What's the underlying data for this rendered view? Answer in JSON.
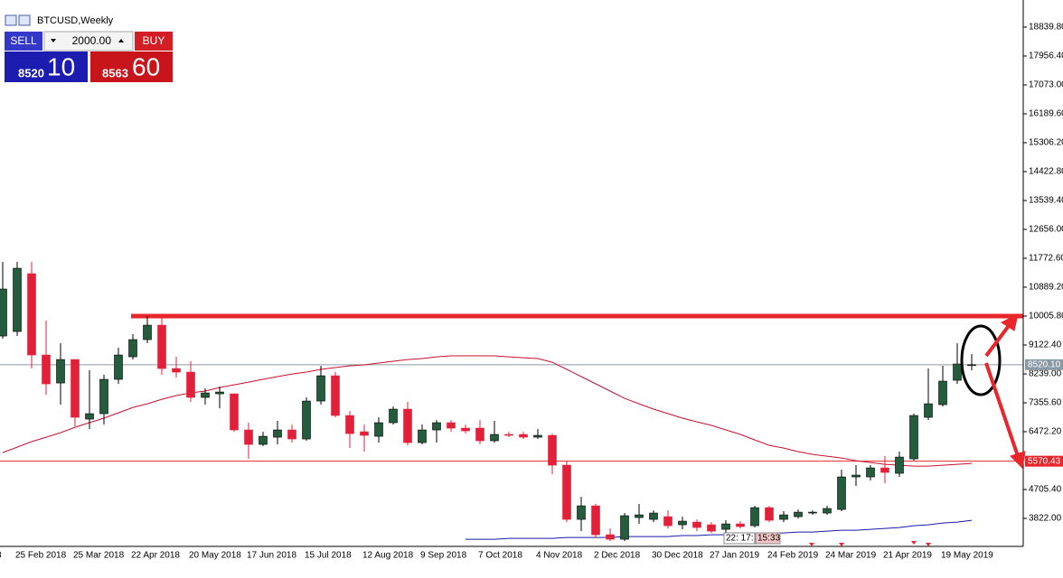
{
  "chart_data": {
    "type": "candlestick",
    "symbol": "BTCUSD,Weekly",
    "up_color": "#245c3e",
    "down_color": "#e3203a",
    "ylim": [
      2966,
      19668
    ],
    "yticks": [
      {
        "value": 3822.0,
        "label": "3822.00"
      },
      {
        "value": 4705.4,
        "label": "4705.40"
      },
      {
        "value": 6472.2,
        "label": "6472.20"
      },
      {
        "value": 7355.6,
        "label": "7355.60"
      },
      {
        "value": 8239.0,
        "label": "8239.00"
      },
      {
        "value": 9122.4,
        "label": "9122.40"
      },
      {
        "value": 10005.8,
        "label": "10005.80"
      },
      {
        "value": 10889.2,
        "label": "10889.20"
      },
      {
        "value": 11772.6,
        "label": "11772.60"
      },
      {
        "value": 12656.0,
        "label": "12656.00"
      },
      {
        "value": 13539.4,
        "label": "13539.40"
      },
      {
        "value": 14422.8,
        "label": "14422.80"
      },
      {
        "value": 15306.2,
        "label": "15306.20"
      },
      {
        "value": 16189.6,
        "label": "16189.60"
      },
      {
        "value": 17073.0,
        "label": "17073.00"
      },
      {
        "value": 17956.4,
        "label": "17956.40"
      },
      {
        "value": 18839.8,
        "label": "18839.80"
      }
    ],
    "cut_label": "8",
    "categories": [
      null,
      "25 Feb 2018",
      null,
      null,
      null,
      "25 Mar 2018",
      null,
      null,
      null,
      "22 Apr 2018",
      null,
      null,
      null,
      "20 May 2018",
      null,
      null,
      null,
      "17 Jun 2018",
      null,
      null,
      null,
      "15 Jul 2018",
      null,
      null,
      null,
      "12 Aug 2018",
      null,
      null,
      null,
      "9 Sep 2018",
      null,
      null,
      null,
      "7 Oct 2018",
      null,
      null,
      null,
      "4 Nov 2018",
      null,
      null,
      null,
      "2 Dec 2018",
      null,
      null,
      null,
      "30 Dec 2018",
      null,
      null,
      null,
      "27 Jan 2019",
      null,
      null,
      null,
      "24 Feb 2019",
      null,
      null,
      null,
      "24 Mar 2019",
      null,
      null,
      null,
      "21 Apr 2019",
      null,
      null,
      null,
      "19 May 2019",
      null,
      null
    ],
    "open": [
      9397,
      9535,
      11302,
      8817,
      7961,
      8679,
      6857,
      7023,
      8072,
      8762,
      9287,
      9728,
      8403,
      8293,
      7520,
      7630,
      7630,
      6526,
      6084,
      6305,
      6526,
      6250,
      7409,
      8182,
      6967,
      6470,
      6332,
      6747,
      7161,
      6139,
      6526,
      6747,
      6581,
      6581,
      6195,
      6388,
      6388,
      6305,
      6360,
      5449,
      3792,
      4206,
      3323,
      3185,
      3847,
      3792,
      3875,
      3627,
      3709,
      3627,
      3488,
      3654,
      3599,
      4151,
      3792,
      3875,
      3986,
      3986,
      4096,
      5090,
      5090,
      5366,
      5200,
      5642,
      6912,
      7299,
      8044,
      8514
    ],
    "high": [
      11661,
      11661,
      11661,
      9866,
      9176,
      8679,
      8348,
      8210,
      9038,
      9452,
      10004,
      9949,
      8762,
      8624,
      7796,
      7851,
      7630,
      6747,
      6470,
      6802,
      6691,
      7520,
      8486,
      8293,
      7105,
      6691,
      6912,
      7243,
      7382,
      6691,
      6829,
      6829,
      6691,
      6829,
      6802,
      6470,
      6470,
      6553,
      6415,
      5587,
      4482,
      4262,
      3516,
      3986,
      4262,
      4068,
      4068,
      3875,
      3792,
      3709,
      3765,
      3737,
      4206,
      4206,
      4041,
      4096,
      4068,
      4206,
      5311,
      5449,
      5449,
      5725,
      5863,
      7023,
      8403,
      8486,
      9176,
      8845
    ],
    "low": [
      9314,
      9397,
      8403,
      7602,
      7299,
      6636,
      6553,
      6691,
      7934,
      8679,
      9176,
      8210,
      8127,
      7382,
      7299,
      7188,
      6470,
      5642,
      6029,
      6084,
      6139,
      6195,
      7299,
      6912,
      5973,
      5863,
      6139,
      6691,
      6056,
      6084,
      6139,
      6470,
      6415,
      6084,
      6139,
      6305,
      6250,
      6250,
      5173,
      3709,
      3433,
      3240,
      3129,
      3129,
      3654,
      3709,
      3516,
      3488,
      3433,
      3378,
      3378,
      3516,
      3544,
      3709,
      3709,
      3820,
      3930,
      3930,
      4041,
      4814,
      4979,
      4897,
      5090,
      5587,
      6829,
      7243,
      7934,
      8348
    ],
    "close": [
      10833,
      11468,
      8817,
      7934,
      8679,
      6912,
      7023,
      8072,
      8817,
      9287,
      9728,
      8403,
      8293,
      7520,
      7658,
      7685,
      6526,
      6084,
      6332,
      6526,
      6250,
      7409,
      8182,
      6967,
      6415,
      6360,
      6747,
      7161,
      6139,
      6526,
      6747,
      6581,
      6498,
      6195,
      6388,
      6360,
      6305,
      6360,
      5449,
      3792,
      4206,
      3323,
      3185,
      3903,
      3930,
      3986,
      3599,
      3737,
      3544,
      3433,
      3654,
      3571,
      4151,
      3765,
      3930,
      4013,
      4013,
      4124,
      5090,
      5145,
      5366,
      5228,
      5697,
      6967,
      7326,
      8017,
      8541,
      8520.1
    ],
    "lines": [
      {
        "color": "#c8102e",
        "values": [
          5835,
          6001,
          6167,
          6305,
          6443,
          6608,
          6747,
          6885,
          7050,
          7216,
          7326,
          7464,
          7575,
          7658,
          7713,
          7823,
          7906,
          7989,
          8072,
          8155,
          8237,
          8293,
          8376,
          8431,
          8486,
          8514,
          8569,
          8624,
          8679,
          8707,
          8762,
          8790,
          8790,
          8790,
          8790,
          8762,
          8734,
          8707,
          8596,
          8376,
          8155,
          7934,
          7713,
          7492,
          7326,
          7161,
          7023,
          6885,
          6774,
          6664,
          6526,
          6388,
          6222,
          6056,
          5973,
          5863,
          5780,
          5725,
          5670,
          5587,
          5532,
          5476,
          5449,
          5421,
          5421,
          5449,
          5476,
          5504
        ]
      },
      {
        "color": "#1a1aa8",
        "values": [
          null,
          null,
          null,
          null,
          null,
          null,
          null,
          null,
          null,
          null,
          null,
          null,
          null,
          null,
          null,
          null,
          null,
          null,
          null,
          null,
          null,
          null,
          null,
          null,
          null,
          null,
          null,
          null,
          null,
          null,
          null,
          null,
          3185,
          3185,
          3185,
          3212,
          3212,
          3212,
          3212,
          3240,
          3240,
          3240,
          3240,
          3268,
          3268,
          3268,
          3268,
          3296,
          3296,
          3323,
          3323,
          3350,
          3350,
          3378,
          3378,
          3406,
          3406,
          3433,
          3461,
          3461,
          3488,
          3516,
          3544,
          3599,
          3627,
          3682,
          3709,
          3765
        ]
      }
    ],
    "resistance": {
      "value": 10005.8,
      "color": "#e8262c"
    },
    "support": {
      "value": 5570.43,
      "label": "5570.43",
      "color": "#e8262c"
    },
    "bid": {
      "value": 8520.1,
      "label": "8520.10",
      "color": "#8a9aa4"
    },
    "timer": "22: 17:",
    "timer_box": "15:33"
  },
  "trade_panel": {
    "sell": "SELL",
    "buy": "BUY",
    "volume": "2000.00",
    "sell_big": "8520",
    "sell_pips": "10",
    "buy_big": "8563",
    "buy_pips": "60"
  }
}
